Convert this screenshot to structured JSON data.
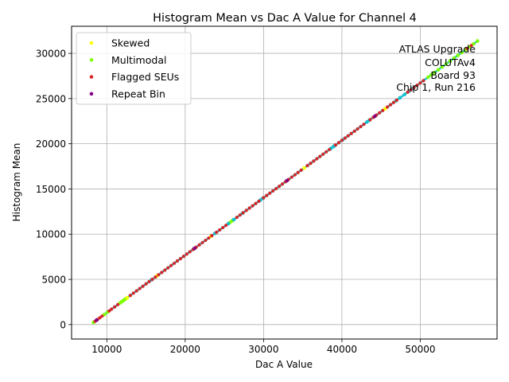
{
  "chart_data": {
    "type": "scatter",
    "title": "Histogram Mean vs Dac A Value for Channel 4",
    "xlabel": "Dac A Value",
    "ylabel": "Histogram Mean",
    "xlim": [
      5500,
      59800
    ],
    "ylim": [
      -1600,
      33000
    ],
    "xticks": [
      10000,
      20000,
      30000,
      40000,
      50000
    ],
    "yticks": [
      0,
      5000,
      10000,
      15000,
      20000,
      25000,
      30000
    ],
    "grid": true,
    "legend_position": "top-left",
    "fit": {
      "slope": 0.6353,
      "intercept": -5035,
      "x_start": 8300,
      "x_end": 57300
    },
    "annotation": [
      "ATLAS Upgrade",
      "COLUTAv4",
      "Board 93",
      "Chip 1, Run 216"
    ],
    "series": [
      {
        "name": "Skewed",
        "color": "#ffff00",
        "x": [
          12600,
          16400,
          23300,
          35200,
          45500
        ]
      },
      {
        "name": "Multimodal",
        "color": "#80ff00",
        "x": [
          8300,
          9700,
          10100,
          11700,
          11900,
          12100,
          12300,
          12500,
          25700,
          26000,
          51000,
          51400,
          51800,
          52300,
          52800,
          53300,
          53800,
          54300,
          54800,
          55300,
          55800,
          56300,
          56800,
          57300
        ]
      },
      {
        "name": "Flagged SEUs",
        "color": "#d62728",
        "x": [
          8500,
          8800,
          9100,
          9400,
          10300,
          10600,
          11000,
          11400,
          13000,
          13400,
          13800,
          14200,
          14600,
          15000,
          15400,
          15800,
          16200,
          16600,
          17000,
          17400,
          17800,
          18200,
          18600,
          19000,
          19400,
          19800,
          20200,
          20600,
          21000,
          21400,
          21800,
          22200,
          22600,
          23000,
          23400,
          24000,
          24400,
          24800,
          25200,
          26600,
          27000,
          27400,
          27800,
          28200,
          28600,
          29000,
          29400,
          30000,
          30400,
          30800,
          31200,
          31600,
          32000,
          32400,
          32800,
          33200,
          33600,
          34000,
          34400,
          34800,
          35600,
          36000,
          36400,
          36800,
          37200,
          37600,
          38000,
          38400,
          39200,
          39600,
          40000,
          40400,
          40800,
          41200,
          41600,
          42000,
          42400,
          42800,
          43600,
          44000,
          44400,
          44800,
          45200,
          45800,
          46200,
          46600,
          47000,
          48400,
          48800,
          49200,
          49600,
          50000,
          50400,
          56000,
          56500
        ]
      },
      {
        "name": "Repeat Bin",
        "color": "#800080",
        "x": [
          8700,
          21200,
          33000,
          44200
        ]
      },
      {
        "name": "",
        "color": "#17becf",
        "x": [
          15700,
          21100,
          23800,
          25500,
          26200,
          27300,
          29600,
          29900,
          38600,
          38900,
          39100,
          40100,
          43200,
          43500,
          46900,
          47400,
          48000,
          48600,
          49000
        ]
      }
    ]
  }
}
